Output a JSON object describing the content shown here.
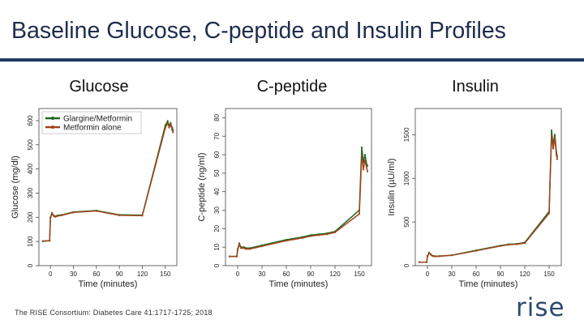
{
  "slide": {
    "title": "Baseline Glucose, C-peptide and Insulin Profiles",
    "citation": "The RISE Consortium: Diabetes Care 41:1717-1725; 2018",
    "logo_text": "rise"
  },
  "colors": {
    "title": "#1f2d4d",
    "rule": "#1f3b63",
    "glargine": "#1e6b1e",
    "metformin": "#a0441e"
  },
  "chart_data": [
    {
      "id": "glucose",
      "type": "line",
      "heading": "Glucose",
      "xlabel": "Time (minutes)",
      "ylabel": "Glucose (mg/dl)",
      "xlim": [
        -15,
        165
      ],
      "ylim": [
        0,
        650
      ],
      "xticks": [
        0,
        30,
        60,
        90,
        120,
        150
      ],
      "yticks": [
        0,
        100,
        200,
        300,
        400,
        500,
        600
      ],
      "legend": {
        "position": "top-left",
        "entries": [
          "Glargine/Metformin",
          "Metformin alone"
        ]
      },
      "series": [
        {
          "name": "Glargine/Metformin",
          "x": [
            -10,
            -1,
            0,
            2,
            4,
            6,
            8,
            10,
            15,
            30,
            60,
            90,
            120,
            150,
            153,
            155,
            157,
            159,
            160
          ],
          "y": [
            101,
            103,
            200,
            218,
            208,
            204,
            206,
            208,
            210,
            222,
            228,
            210,
            209,
            580,
            598,
            578,
            590,
            570,
            560
          ]
        },
        {
          "name": "Metformin alone",
          "x": [
            -10,
            -1,
            0,
            2,
            4,
            6,
            8,
            10,
            15,
            30,
            60,
            90,
            120,
            150,
            153,
            155,
            157,
            159,
            160
          ],
          "y": [
            102,
            104,
            198,
            215,
            206,
            202,
            204,
            206,
            208,
            220,
            226,
            208,
            207,
            570,
            590,
            572,
            584,
            562,
            552
          ]
        }
      ]
    },
    {
      "id": "cpeptide",
      "type": "line",
      "heading": "C-peptide",
      "xlabel": "Time (minutes)",
      "ylabel": "C-peptide (ng/ml)",
      "xlim": [
        -15,
        165
      ],
      "ylim": [
        0,
        85
      ],
      "xticks": [
        0,
        30,
        60,
        90,
        120,
        150
      ],
      "yticks": [
        0,
        10,
        20,
        30,
        40,
        50,
        60,
        70,
        80
      ],
      "series": [
        {
          "name": "Glargine/Metformin",
          "x": [
            -10,
            -1,
            0,
            2,
            4,
            6,
            8,
            10,
            15,
            30,
            60,
            80,
            90,
            100,
            110,
            120,
            150,
            153,
            155,
            157,
            159,
            160
          ],
          "y": [
            5,
            5,
            9,
            12,
            10,
            10,
            10,
            9.5,
            9.5,
            11,
            14,
            15.5,
            16.5,
            17,
            17.5,
            18.5,
            30,
            64,
            56,
            60,
            55,
            54
          ]
        },
        {
          "name": "Metformin alone",
          "x": [
            -10,
            -1,
            0,
            2,
            4,
            6,
            8,
            10,
            15,
            30,
            60,
            80,
            90,
            100,
            110,
            120,
            150,
            153,
            155,
            157,
            159,
            160
          ],
          "y": [
            5,
            5,
            8.5,
            11.5,
            9.5,
            9.5,
            9.5,
            9,
            9,
            10.5,
            13.5,
            15,
            16,
            16.5,
            17,
            18,
            28,
            60,
            52,
            57,
            53,
            51
          ]
        }
      ]
    },
    {
      "id": "insulin",
      "type": "line",
      "heading": "Insulin",
      "xlabel": "Time (minutes)",
      "ylabel": "Insulin (µU/ml)",
      "xlim": [
        -15,
        165
      ],
      "ylim": [
        0,
        1800
      ],
      "xticks": [
        0,
        30,
        60,
        90,
        120,
        150
      ],
      "yticks": [
        0,
        500,
        1000,
        1500
      ],
      "series": [
        {
          "name": "Glargine/Metformin",
          "x": [
            -10,
            -1,
            0,
            2,
            4,
            6,
            8,
            10,
            15,
            30,
            60,
            90,
            100,
            110,
            120,
            150,
            153,
            155,
            157,
            159,
            160
          ],
          "y": [
            40,
            40,
            110,
            150,
            130,
            115,
            110,
            108,
            110,
            120,
            175,
            230,
            245,
            250,
            265,
            620,
            1550,
            1380,
            1500,
            1300,
            1250
          ]
        },
        {
          "name": "Metformin alone",
          "x": [
            -10,
            -1,
            0,
            2,
            4,
            6,
            8,
            10,
            15,
            30,
            60,
            90,
            100,
            110,
            120,
            150,
            153,
            155,
            157,
            159,
            160
          ],
          "y": [
            40,
            40,
            105,
            145,
            125,
            112,
            108,
            105,
            108,
            118,
            170,
            225,
            240,
            245,
            258,
            600,
            1500,
            1340,
            1460,
            1270,
            1220
          ]
        }
      ]
    }
  ]
}
